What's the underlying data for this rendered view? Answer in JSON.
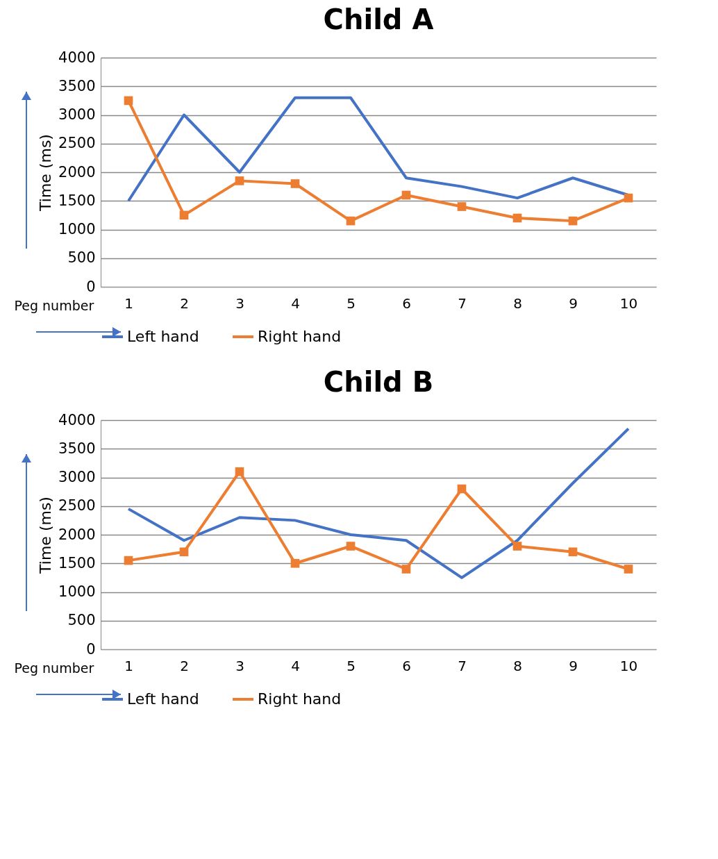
{
  "chart_data": [
    {
      "type": "line",
      "title": "Child A",
      "xlabel": "Peg number",
      "ylabel": "Time (ms)",
      "categories": [
        "1",
        "2",
        "3",
        "4",
        "5",
        "6",
        "7",
        "8",
        "9",
        "10"
      ],
      "series": [
        {
          "name": "Left hand",
          "color": "#4472c4",
          "marker": "none",
          "values": [
            1500,
            3000,
            2000,
            3300,
            3300,
            1900,
            1750,
            1550,
            1900,
            1600
          ]
        },
        {
          "name": "Right hand",
          "color": "#ed7d31",
          "marker": "square",
          "values": [
            3250,
            1250,
            1850,
            1800,
            1150,
            1600,
            1400,
            1200,
            1150,
            1550
          ]
        }
      ],
      "ylim": [
        0,
        4000
      ],
      "yticks": [
        0,
        500,
        1000,
        1500,
        2000,
        2500,
        3000,
        3500,
        4000
      ],
      "grid": "y",
      "legend": "bottom"
    },
    {
      "type": "line",
      "title": "Child B",
      "xlabel": "Peg number",
      "ylabel": "Time (ms)",
      "categories": [
        "1",
        "2",
        "3",
        "4",
        "5",
        "6",
        "7",
        "8",
        "9",
        "10"
      ],
      "series": [
        {
          "name": "Left hand",
          "color": "#4472c4",
          "marker": "none",
          "values": [
            2450,
            1900,
            2300,
            2250,
            2000,
            1900,
            1250,
            1900,
            2900,
            3850
          ]
        },
        {
          "name": "Right hand",
          "color": "#ed7d31",
          "marker": "square",
          "values": [
            1550,
            1700,
            3100,
            1500,
            1800,
            1400,
            2800,
            1800,
            1700,
            1400
          ]
        }
      ],
      "ylim": [
        0,
        4000
      ],
      "yticks": [
        0,
        500,
        1000,
        1500,
        2000,
        2500,
        3000,
        3500,
        4000
      ],
      "grid": "y",
      "legend": "bottom"
    }
  ]
}
